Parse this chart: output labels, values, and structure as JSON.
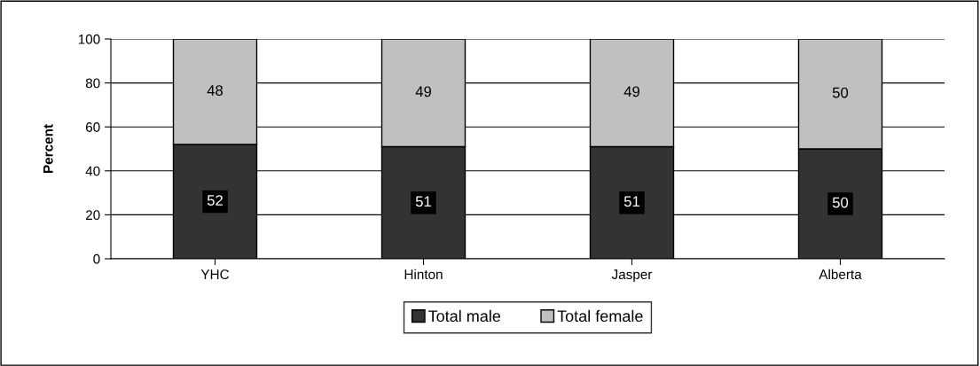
{
  "chart_data": {
    "type": "bar",
    "stacked": true,
    "ylabel": "Percent",
    "categories": [
      "YHC",
      "Hinton",
      "Jasper",
      "Alberta"
    ],
    "series": [
      {
        "name": "Total male",
        "color": "#333333",
        "values": [
          52,
          51,
          51,
          50
        ]
      },
      {
        "name": "Total female",
        "color": "#c0c0c0",
        "values": [
          48,
          49,
          49,
          50
        ]
      }
    ],
    "ylim": [
      0,
      100
    ],
    "yticks": [
      0,
      20,
      40,
      60,
      80,
      100
    ],
    "grid": "y",
    "legend": "bottom",
    "data_labels": true
  }
}
